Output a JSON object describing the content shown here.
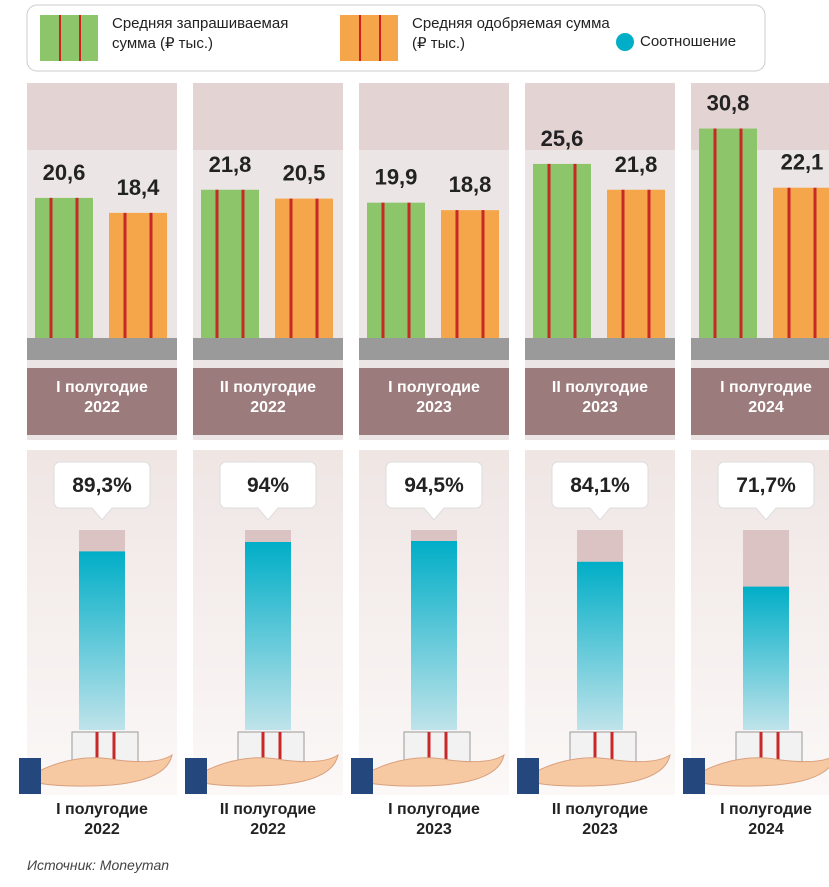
{
  "chart_data": [
    {
      "type": "bar",
      "categories": [
        "I полугодие 2022",
        "II полугодие 2022",
        "I полугодие 2023",
        "II полугодие 2023",
        "I полугодие 2024"
      ],
      "series": [
        {
          "name": "Средняя запрашиваемая сумма (₽ тыс.)",
          "color": "#8dc56a",
          "values": [
            20.6,
            21.8,
            19.9,
            25.6,
            30.8
          ],
          "value_labels": [
            "20,6",
            "21,8",
            "19,9",
            "25,6",
            "30,8"
          ]
        },
        {
          "name": "Средняя одобряемая сумма (₽ тыс.)",
          "color": "#f5a54a",
          "values": [
            18.4,
            20.5,
            18.8,
            21.8,
            22.1
          ],
          "value_labels": [
            "18,4",
            "20,5",
            "18,8",
            "21,8",
            "22,1"
          ]
        }
      ]
    },
    {
      "type": "ratio",
      "ylim": [
        0,
        100
      ],
      "series": [
        {
          "name": "Соотношение",
          "color": "#00aec7",
          "values": [
            89.3,
            94,
            94.5,
            84.1,
            71.7
          ],
          "value_labels": [
            "89,3%",
            "94%",
            "94,5%",
            "84,1%",
            "71,7%"
          ]
        }
      ]
    }
  ],
  "source": "Источник: Moneyman"
}
